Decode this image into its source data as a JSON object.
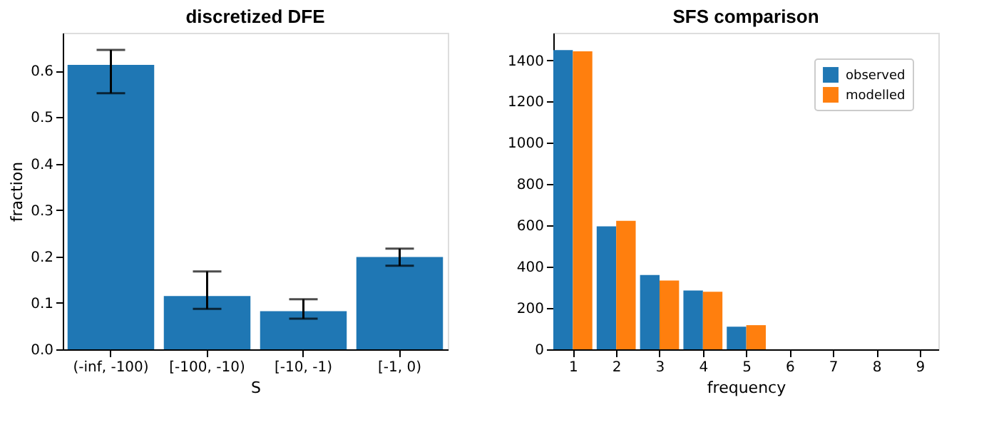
{
  "chart_data": [
    {
      "type": "bar",
      "title": "discretized DFE",
      "xlabel": "S",
      "ylabel": "fraction",
      "categories": [
        "(-inf, -100)",
        "[-100, -10)",
        "[-10, -1)",
        "[-1, 0)"
      ],
      "values": [
        0.613,
        0.115,
        0.082,
        0.199
      ],
      "errors": [
        [
          0.552,
          0.645
        ],
        [
          0.087,
          0.168
        ],
        [
          0.066,
          0.108
        ],
        [
          0.18,
          0.217
        ]
      ],
      "color": "#1f77b4",
      "ylim": [
        0,
        0.682
      ],
      "yticks": [
        {
          "value": 0,
          "label": "0.0"
        },
        0.1,
        0.2,
        0.3,
        0.4,
        0.5,
        0.6
      ],
      "grid": false
    },
    {
      "type": "bar",
      "title": "SFS comparison",
      "xlabel": "frequency",
      "x": [
        1,
        2,
        3,
        4,
        5,
        6,
        7,
        8,
        9
      ],
      "series": [
        {
          "name": "observed",
          "color": "#1f77b4",
          "values": [
            1449,
            596,
            360,
            285,
            110,
            0,
            0,
            0,
            0
          ]
        },
        {
          "name": "modelled",
          "color": "#ff7f0e",
          "values": [
            1443,
            622,
            333,
            279,
            117,
            0,
            0,
            0,
            0
          ]
        }
      ],
      "xlim": [
        0.55,
        9.43
      ],
      "xticks": [
        1,
        2,
        3,
        4,
        5,
        6,
        7,
        8,
        9
      ],
      "ylim": [
        0,
        1533
      ],
      "yticks": [
        0,
        200,
        400,
        600,
        800,
        1000,
        1200,
        1400
      ],
      "legend": "top right",
      "grid": false
    }
  ]
}
